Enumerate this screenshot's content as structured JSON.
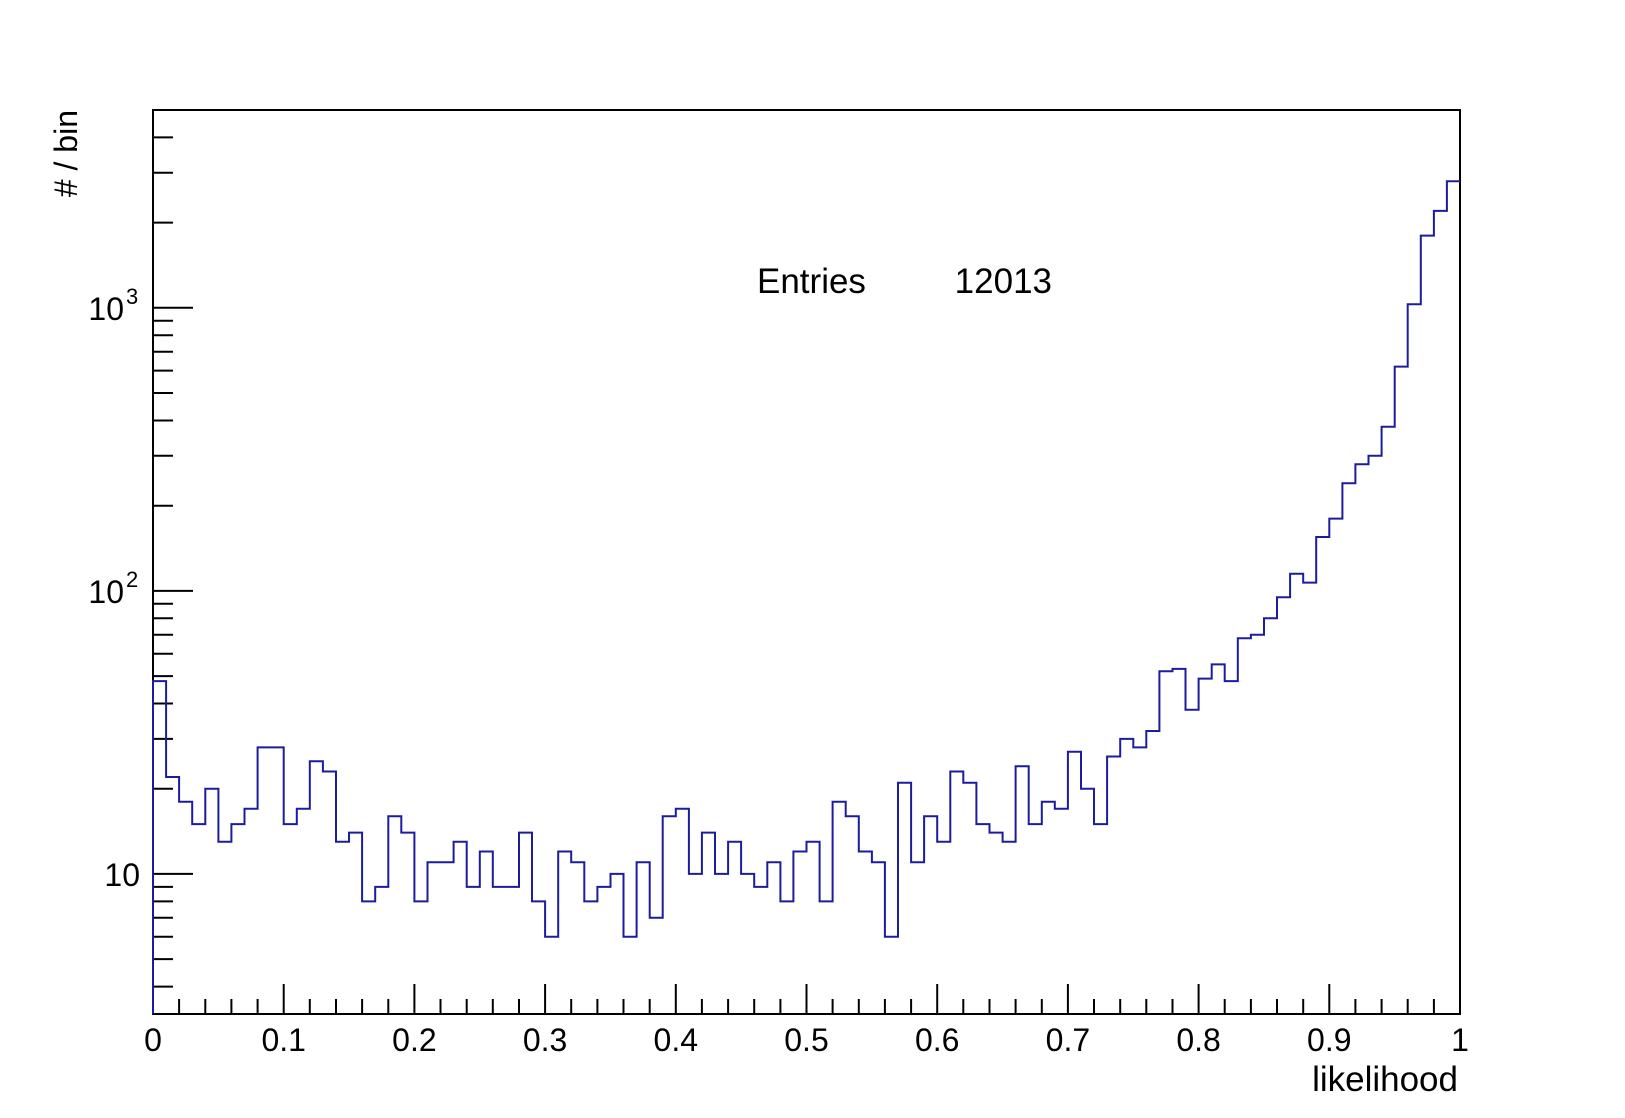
{
  "chart_data": {
    "type": "histogram",
    "xlabel": "likelihood",
    "ylabel": "# / bin",
    "xlim": [
      0,
      1
    ],
    "ylim": [
      3.2,
      5000
    ],
    "y_scale": "log",
    "grid": false,
    "legend": "none",
    "line_color": "#1c1c9e",
    "bin_width": 0.01,
    "x_ticks": [
      "0",
      "0.1",
      "0.2",
      "0.3",
      "0.4",
      "0.5",
      "0.6",
      "0.7",
      "0.8",
      "0.9",
      "1"
    ],
    "y_ticks": [
      {
        "value": 10,
        "base": "10",
        "exp": ""
      },
      {
        "value": 100,
        "base": "10",
        "exp": "2"
      },
      {
        "value": 1000,
        "base": "10",
        "exp": "3"
      }
    ],
    "values": [
      48,
      22,
      18,
      15,
      20,
      13,
      15,
      17,
      28,
      28,
      15,
      17,
      25,
      23,
      13,
      14,
      8,
      9,
      16,
      14,
      8,
      11,
      11,
      13,
      9,
      12,
      9,
      9,
      14,
      8,
      6,
      12,
      11,
      8,
      9,
      10,
      6,
      11,
      7,
      16,
      17,
      10,
      14,
      10,
      13,
      10,
      9,
      11,
      8,
      12,
      13,
      8,
      18,
      16,
      12,
      11,
      6,
      21,
      11,
      16,
      13,
      23,
      21,
      15,
      14,
      13,
      24,
      15,
      18,
      17,
      27,
      20,
      15,
      26,
      30,
      28,
      32,
      52,
      53,
      38,
      49,
      55,
      48,
      68,
      70,
      80,
      95,
      115,
      107,
      155,
      180,
      240,
      280,
      300,
      380,
      620,
      1030,
      1800,
      2200,
      2800
    ],
    "stats": {
      "label": "Entries",
      "value": "12013"
    }
  }
}
